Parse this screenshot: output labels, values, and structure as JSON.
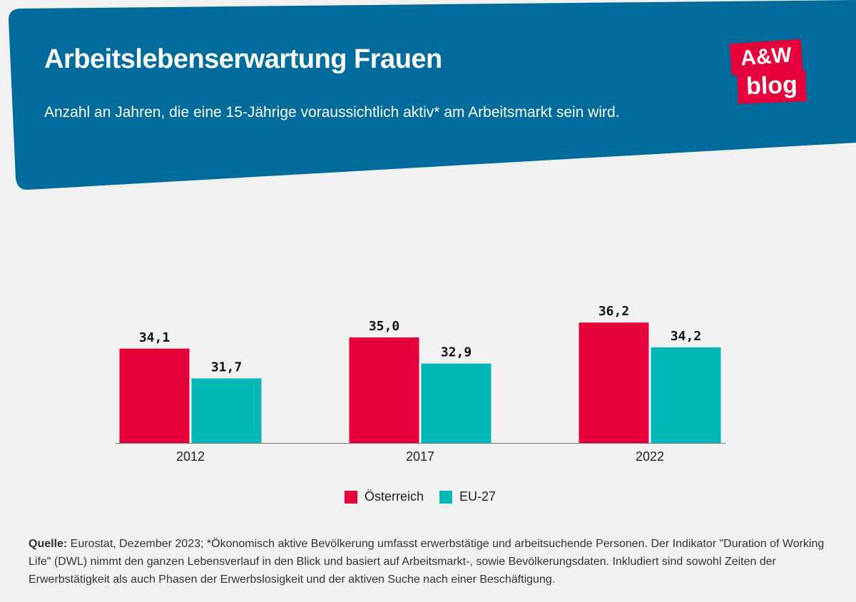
{
  "header": {
    "title": "Arbeitslebenserwartung Frauen",
    "subtitle": "Anzahl an Jahren, die eine 15-Jährige voraussichtlich aktiv* am Arbeitsmarkt sein wird.",
    "logo_top": "A&W",
    "logo_bottom": "blog"
  },
  "colors": {
    "header_bg": "#006c9c",
    "austria": "#e5003b",
    "eu": "#00b8b8",
    "logo": "#e5003b"
  },
  "chart_data": {
    "type": "bar",
    "title": "Arbeitslebenserwartung Frauen",
    "categories": [
      "2012",
      "2017",
      "2022"
    ],
    "series": [
      {
        "name": "Österreich",
        "values": [
          34.1,
          35.0,
          36.2
        ],
        "labels": [
          "34,1",
          "35,0",
          "36,2"
        ]
      },
      {
        "name": "EU-27",
        "values": [
          31.7,
          32.9,
          34.2
        ],
        "labels": [
          "31,7",
          "32,9",
          "34,2"
        ]
      }
    ],
    "legend_position": "bottom-center",
    "grid": false
  },
  "legend": {
    "austria": "Österreich",
    "eu": "EU-27"
  },
  "source": {
    "label": "Quelle:",
    "text": " Eurostat, Dezember 2023; *Ökonomisch aktive Bevölkerung umfasst erwerbstätige und arbeitsuchende Personen. Der Indikator \"Duration of Working Life\" (DWL) nimmt den ganzen Lebensverlauf in den Blick und basiert auf Arbeitsmarkt-, sowie Bevölkerungsdaten. Inkludiert sind sowohl Zeiten der Erwerbstätigkeit als auch Phasen der Erwerbslosigkeit und der aktiven Suche nach einer Beschäftigung."
  }
}
